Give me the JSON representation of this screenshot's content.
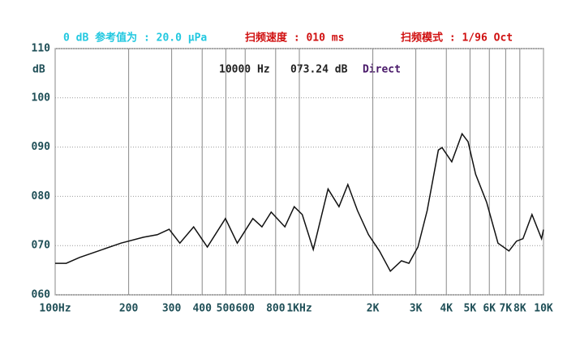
{
  "chart_data": {
    "type": "line",
    "header": {
      "reference": "0 dB 参考值为 : 20.0 μPa",
      "sweep_speed": "扫频速度 : 010 ms",
      "sweep_mode": "扫频模式 : 1/96 Oct"
    },
    "annotations": [
      "10000 Hz",
      "073.24 dB",
      "Direct"
    ],
    "y_label": "dB",
    "x": [
      100,
      111,
      126,
      150,
      186,
      230,
      262,
      293,
      324,
      369,
      420,
      498,
      557,
      645,
      703,
      767,
      873,
      953,
      1028,
      1141,
      1311,
      1454,
      1580,
      1730,
      1920,
      2130,
      2360,
      2620,
      2810,
      3060,
      3340,
      3710,
      3840,
      4210,
      4640,
      4910,
      5270,
      5850,
      6510,
      7220,
      7760,
      8240,
      8970,
      9820,
      10000
    ],
    "values": [
      66.4,
      66.4,
      67.6,
      68.9,
      70.5,
      71.7,
      72.2,
      73.3,
      70.5,
      73.8,
      69.7,
      75.5,
      70.5,
      75.5,
      73.8,
      76.8,
      73.8,
      77.9,
      76.3,
      69.2,
      81.5,
      77.9,
      82.4,
      77.1,
      72.2,
      68.9,
      64.8,
      66.9,
      66.4,
      69.7,
      77.1,
      89.4,
      89.9,
      87.0,
      92.7,
      91.1,
      84.5,
      78.8,
      70.5,
      68.9,
      70.9,
      71.4,
      76.3,
      71.4,
      73.24
    ],
    "color": "#111111",
    "log_x": true,
    "grid": true,
    "xlim": [
      100,
      10000
    ],
    "xticks": [
      {
        "value": 100,
        "label": "100Hz"
      },
      200,
      300,
      400,
      500,
      600,
      800,
      {
        "value": 1000,
        "label": "1KHz"
      },
      {
        "value": 2000,
        "label": "2K"
      },
      {
        "value": 3000,
        "label": "3K"
      },
      {
        "value": 4000,
        "label": "4K"
      },
      {
        "value": 5000,
        "label": "5K"
      },
      {
        "value": 6000,
        "label": "6K"
      },
      {
        "value": 7000,
        "label": "7K"
      },
      {
        "value": 8000,
        "label": "8K"
      },
      {
        "value": 10000,
        "label": "10K"
      }
    ],
    "ylim": [
      60,
      110
    ],
    "yticks": [
      {
        "value": 60,
        "label": "060"
      },
      {
        "value": 70,
        "label": "070"
      },
      {
        "value": 80,
        "label": "080"
      },
      {
        "value": 90,
        "label": "090"
      },
      100,
      110
    ]
  }
}
